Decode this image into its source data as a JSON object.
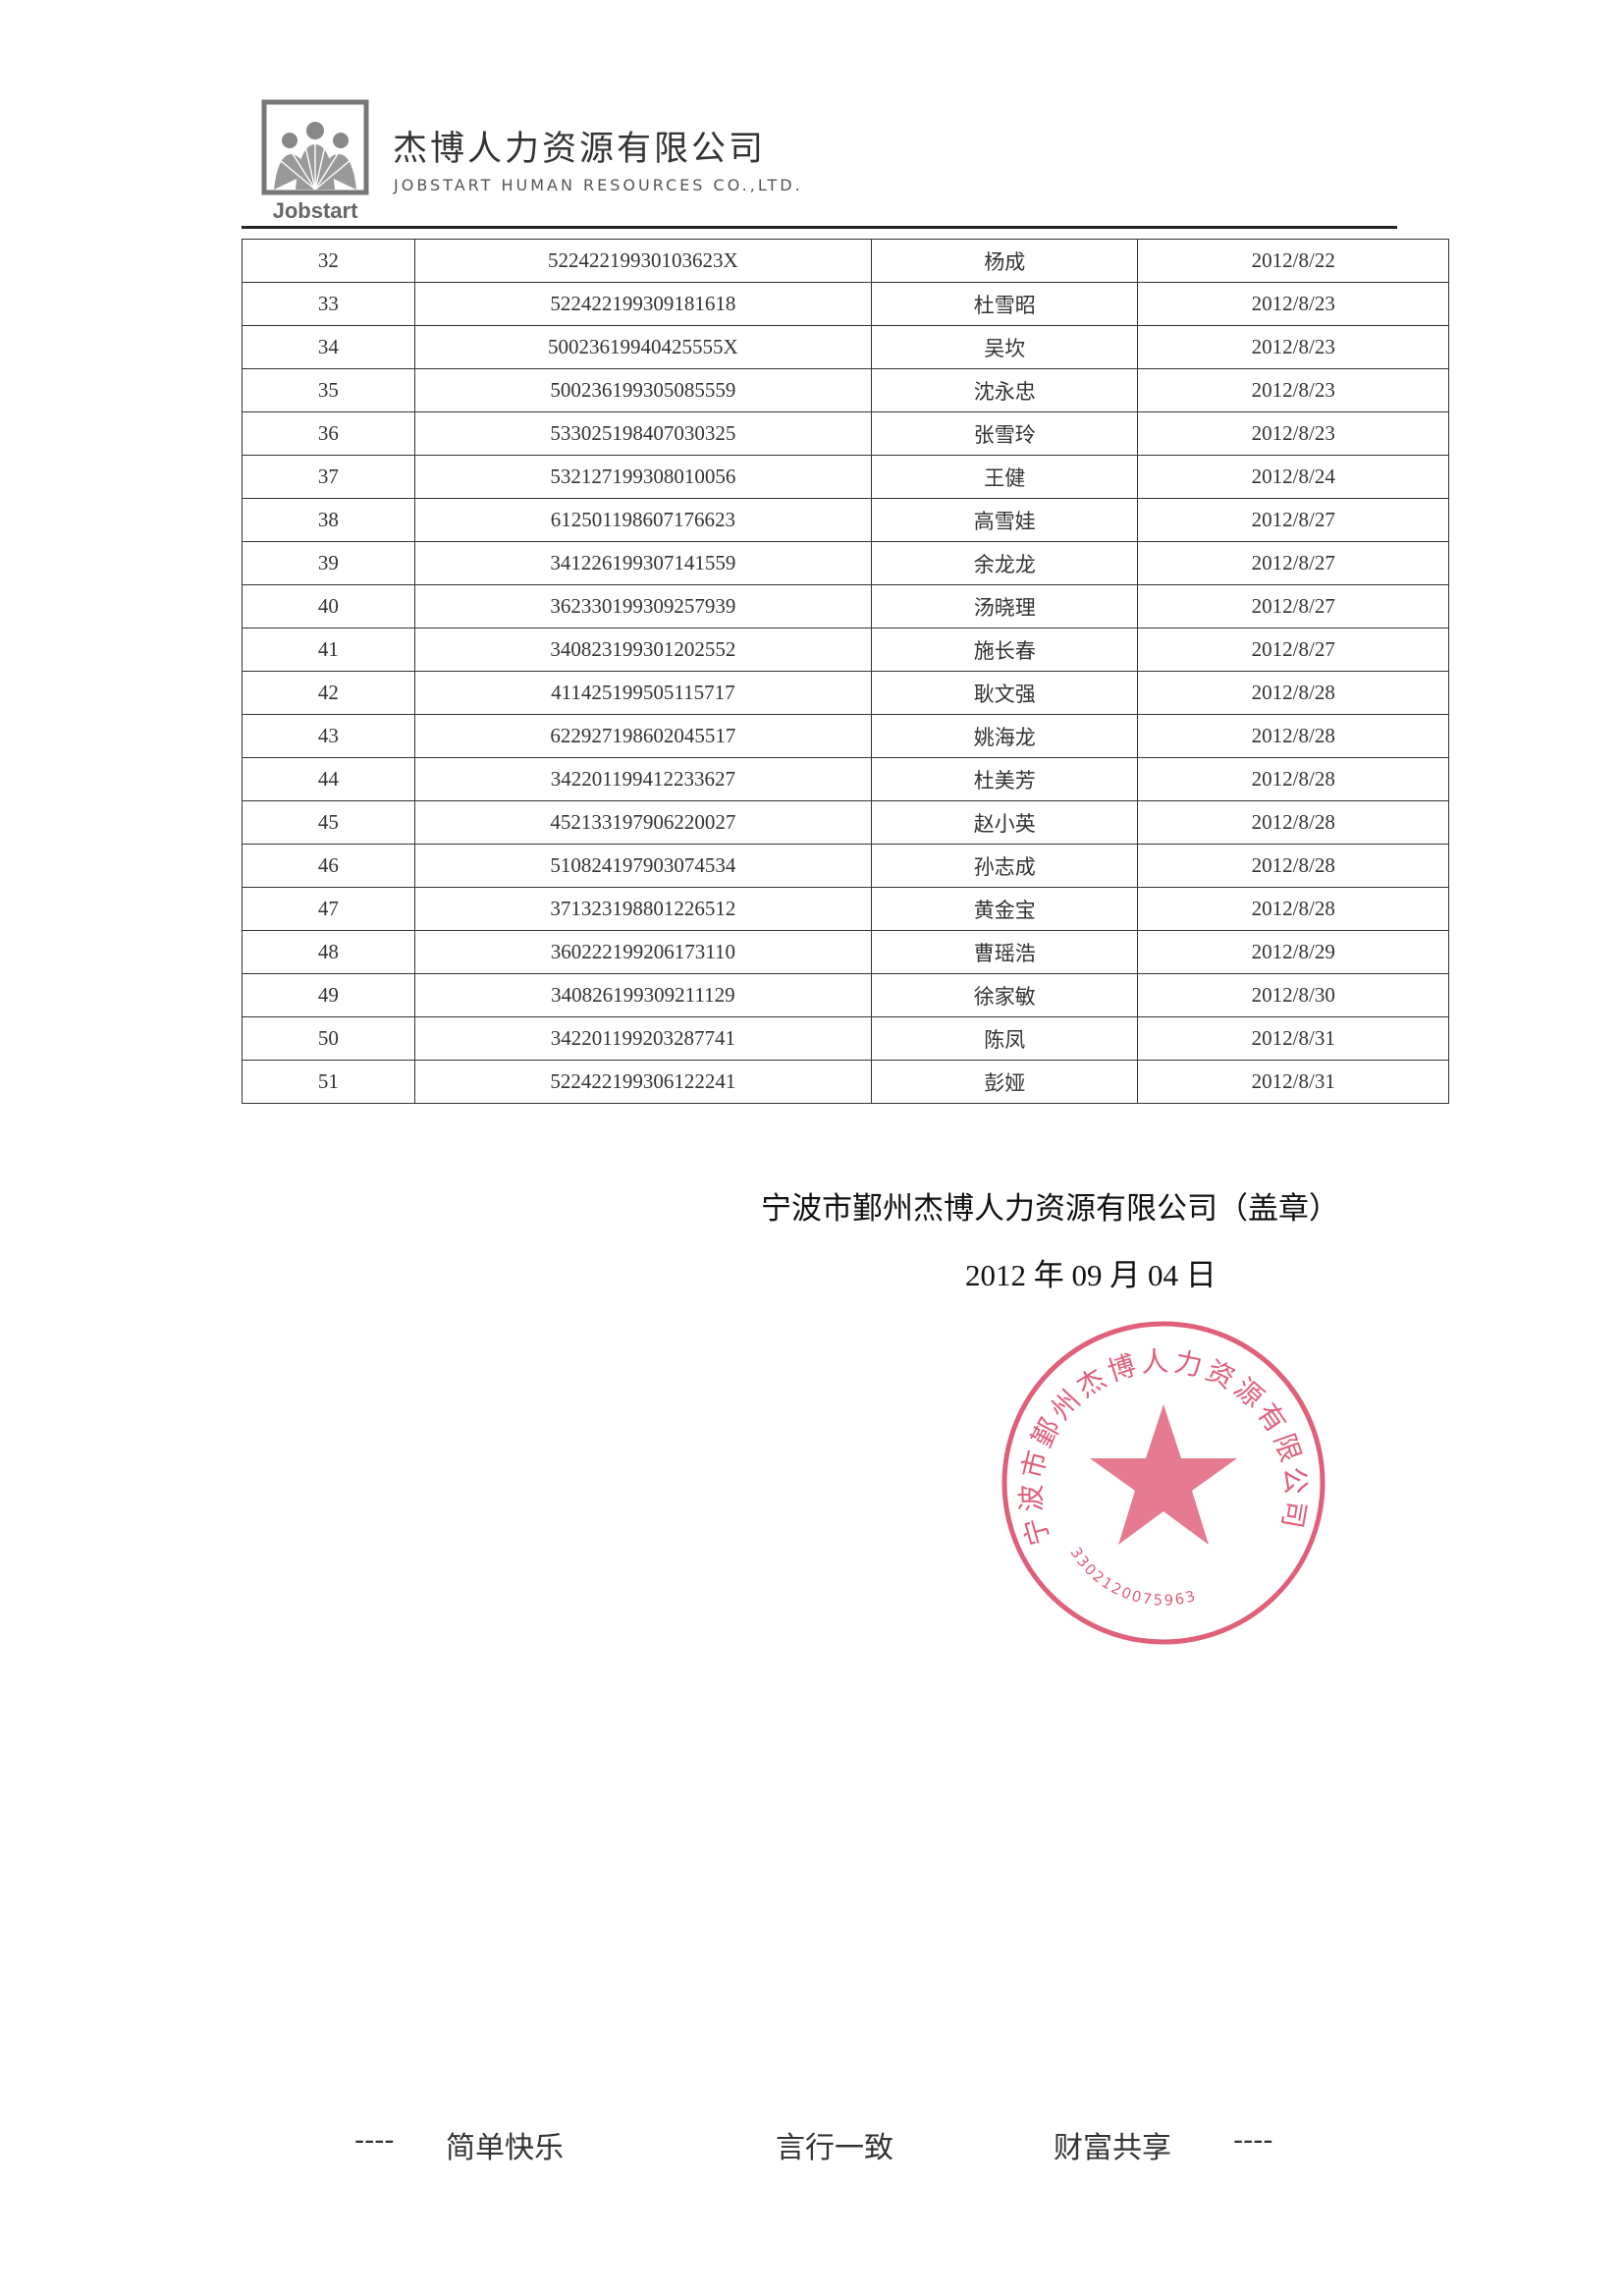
{
  "header": {
    "logo_text": "Jobstart",
    "company_cn": "杰博人力资源有限公司",
    "company_en": "JOBSTART HUMAN RESOURCES CO.,LTD."
  },
  "table": {
    "rows": [
      [
        "32",
        "52242219930103623X",
        "杨成",
        "2012/8/22"
      ],
      [
        "33",
        "522422199309181618",
        "杜雪昭",
        "2012/8/23"
      ],
      [
        "34",
        "50023619940425555X",
        "吴坎",
        "2012/8/23"
      ],
      [
        "35",
        "500236199305085559",
        "沈永忠",
        "2012/8/23"
      ],
      [
        "36",
        "533025198407030325",
        "张雪玲",
        "2012/8/23"
      ],
      [
        "37",
        "532127199308010056",
        "王健",
        "2012/8/24"
      ],
      [
        "38",
        "612501198607176623",
        "高雪娃",
        "2012/8/27"
      ],
      [
        "39",
        "341226199307141559",
        "余龙龙",
        "2012/8/27"
      ],
      [
        "40",
        "362330199309257939",
        "汤晓理",
        "2012/8/27"
      ],
      [
        "41",
        "340823199301202552",
        "施长春",
        "2012/8/27"
      ],
      [
        "42",
        "411425199505115717",
        "耿文强",
        "2012/8/28"
      ],
      [
        "43",
        "622927198602045517",
        "姚海龙",
        "2012/8/28"
      ],
      [
        "44",
        "342201199412233627",
        "杜美芳",
        "2012/8/28"
      ],
      [
        "45",
        "452133197906220027",
        "赵小英",
        "2012/8/28"
      ],
      [
        "46",
        "510824197903074534",
        "孙志成",
        "2012/8/28"
      ],
      [
        "47",
        "371323198801226512",
        "黄金宝",
        "2012/8/28"
      ],
      [
        "48",
        "360222199206173110",
        "曹瑶浩",
        "2012/8/29"
      ],
      [
        "49",
        "340826199309211129",
        "徐家敏",
        "2012/8/30"
      ],
      [
        "50",
        "342201199203287741",
        "陈凤",
        "2012/8/31"
      ],
      [
        "51",
        "522422199306122241",
        "彭娅",
        "2012/8/31"
      ]
    ]
  },
  "signature": {
    "company": "宁波市鄞州杰博人力资源有限公司（盖章）",
    "date": "2012 年 09 月 04 日"
  },
  "stamp": {
    "text": "宁波市鄞州杰博人力资源有限公司",
    "number": "3302120075963",
    "color": "#e0607a"
  },
  "footer": {
    "dash_left": "----",
    "motto1": "简单快乐",
    "motto2": "言行一致",
    "motto3": "财富共享",
    "dash_right": "----"
  }
}
